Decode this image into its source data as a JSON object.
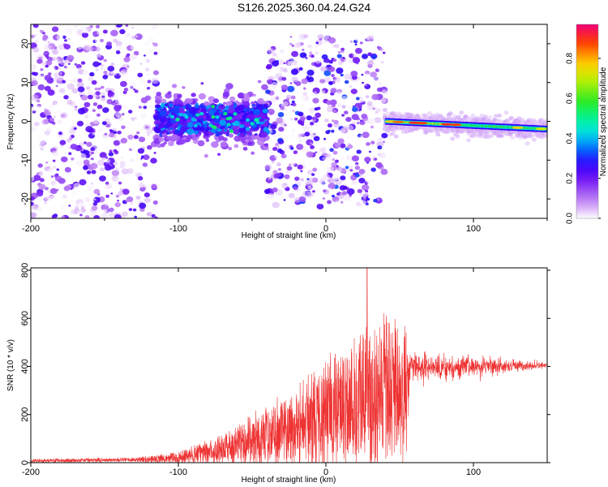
{
  "title": "S126.2025.360.04.24.G24",
  "chart_data": [
    {
      "type": "heatmap",
      "xlabel": "Height of straight line (km)",
      "ylabel": "Frequency (Hz)",
      "xlim": [
        -200,
        150
      ],
      "ylim": [
        -25,
        25
      ],
      "xticks": [
        -200,
        -100,
        0,
        100
      ],
      "yticks": [
        -20,
        -10,
        0,
        10,
        20
      ],
      "colorbar": {
        "label": "Normalized spectral amplitude",
        "range": [
          0,
          0.97
        ],
        "ticks": [
          0.0,
          0.2,
          0.4,
          0.6,
          0.8
        ]
      },
      "features": [
        {
          "region": "noise",
          "x_range": [
            -200,
            -115
          ],
          "freq_spread": 25,
          "level": 0.12
        },
        {
          "region": "coherent-band",
          "x_range": [
            -115,
            -40
          ],
          "freq_center": 0.5,
          "freq_width": 3,
          "level": 0.3
        },
        {
          "region": "scattered",
          "x_range": [
            -40,
            40
          ],
          "freq_spread": 22,
          "level": 0.15
        },
        {
          "region": "tone",
          "x_start": 40,
          "x_end": 150,
          "freq_start": 0,
          "freq_end": -2,
          "level": 0.6,
          "peak_x": [
            60,
            85
          ],
          "peak_level": 0.9
        }
      ]
    },
    {
      "type": "line",
      "xlabel": "Height of straight line (km)",
      "ylabel": "SNR (10 * v/v)",
      "xlim": [
        -200,
        150
      ],
      "ylim": [
        0,
        810
      ],
      "xticks": [
        -200,
        -100,
        0,
        100
      ],
      "yticks": [
        0,
        200,
        400,
        600,
        800
      ],
      "color": "#ee3333",
      "envelope": [
        {
          "x": -200,
          "base": 8,
          "amp": 8
        },
        {
          "x": -130,
          "base": 12,
          "amp": 10
        },
        {
          "x": -100,
          "base": 20,
          "amp": 25
        },
        {
          "x": -80,
          "base": 45,
          "amp": 55
        },
        {
          "x": -60,
          "base": 75,
          "amp": 90
        },
        {
          "x": -40,
          "base": 110,
          "amp": 140
        },
        {
          "x": -20,
          "base": 150,
          "amp": 180
        },
        {
          "x": 0,
          "base": 210,
          "amp": 240
        },
        {
          "x": 20,
          "base": 260,
          "amp": 300
        },
        {
          "x": 35,
          "base": 300,
          "amp": 340
        },
        {
          "x": 54,
          "base": 280,
          "amp": 320
        },
        {
          "x": 57,
          "base": 400,
          "amp": 70
        },
        {
          "x": 80,
          "base": 395,
          "amp": 55
        },
        {
          "x": 110,
          "base": 400,
          "amp": 35
        },
        {
          "x": 150,
          "base": 405,
          "amp": 15
        }
      ],
      "peak": {
        "x": 28,
        "y": 810
      }
    }
  ]
}
